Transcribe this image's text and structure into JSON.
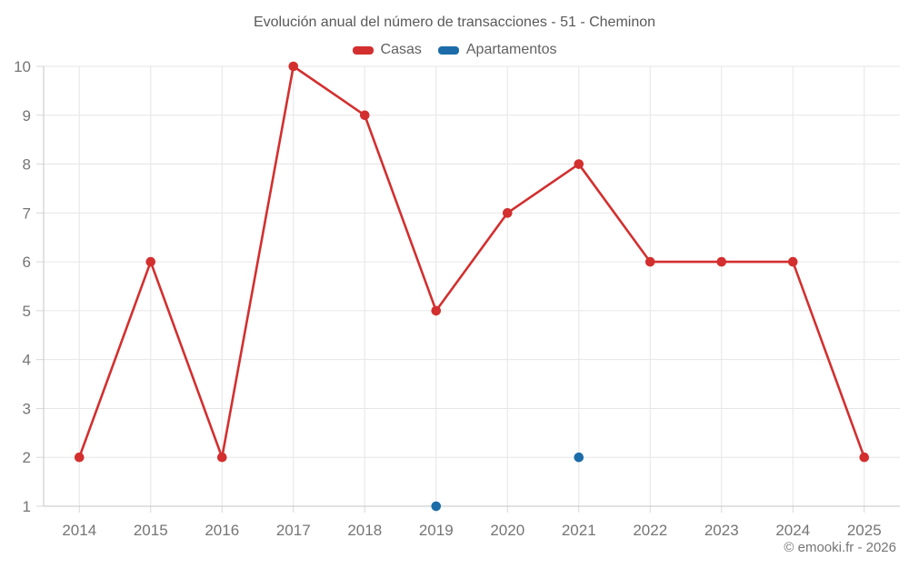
{
  "chart_data": {
    "type": "line",
    "title": "Evolución anual del número de transacciones - 51 - Cheminon",
    "categories": [
      "2014",
      "2015",
      "2016",
      "2017",
      "2018",
      "2019",
      "2020",
      "2021",
      "2022",
      "2023",
      "2024",
      "2025"
    ],
    "series": [
      {
        "name": "Casas",
        "color": "#d32f2f",
        "values": [
          2,
          6,
          2,
          10,
          9,
          5,
          7,
          8,
          6,
          6,
          6,
          2
        ]
      },
      {
        "name": "Apartamentos",
        "color": "#1b6ca8",
        "values": [
          null,
          null,
          null,
          null,
          null,
          1,
          null,
          2,
          null,
          null,
          null,
          null
        ]
      }
    ],
    "xlabel": "",
    "ylabel": "",
    "ylim": [
      1,
      10
    ],
    "yticks": [
      1,
      2,
      3,
      4,
      5,
      6,
      7,
      8,
      9,
      10
    ],
    "grid": true,
    "legend_position": "top",
    "footer": "© emooki.fr - 2026"
  }
}
